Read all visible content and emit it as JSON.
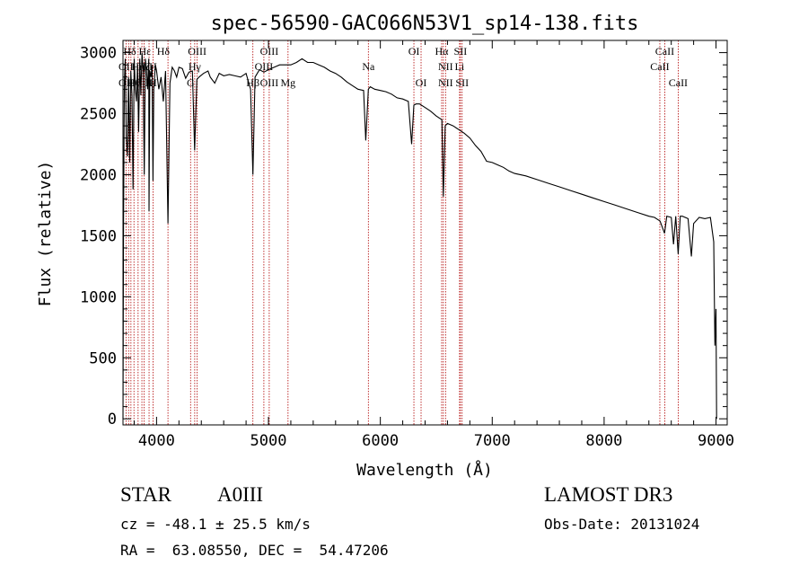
{
  "chart_data": {
    "type": "line",
    "title": "spec-56590-GAC066N53V1_sp14-138.fits",
    "xlabel": "Wavelength (Å)",
    "ylabel": "Flux (relative)",
    "xlim": [
      3700,
      9100
    ],
    "ylim": [
      -50,
      3100
    ],
    "xticks": [
      4000,
      5000,
      6000,
      7000,
      8000,
      9000
    ],
    "yticks": [
      0,
      500,
      1000,
      1500,
      2000,
      2500,
      3000
    ],
    "xtick_labels": [
      "4000",
      "5000",
      "6000",
      "7000",
      "8000",
      "9000"
    ],
    "ytick_labels": [
      "0",
      "500",
      "1000",
      "1500",
      "2000",
      "2500",
      "3000"
    ],
    "series": [
      {
        "name": "flux",
        "x": [
          3700,
          3705,
          3712,
          3720,
          3730,
          3740,
          3750,
          3760,
          3770,
          3780,
          3790,
          3800,
          3810,
          3820,
          3830,
          3840,
          3850,
          3860,
          3870,
          3880,
          3890,
          3900,
          3910,
          3920,
          3930,
          3933,
          3940,
          3950,
          3960,
          3968,
          3975,
          3990,
          4000,
          4020,
          4040,
          4060,
          4080,
          4102,
          4120,
          4140,
          4160,
          4180,
          4200,
          4230,
          4260,
          4290,
          4320,
          4340,
          4360,
          4380,
          4420,
          4460,
          4480,
          4520,
          4560,
          4600,
          4650,
          4700,
          4750,
          4800,
          4840,
          4861,
          4880,
          4920,
          4960,
          5000,
          5050,
          5100,
          5150,
          5200,
          5250,
          5300,
          5350,
          5400,
          5450,
          5500,
          5550,
          5600,
          5650,
          5700,
          5750,
          5800,
          5850,
          5870,
          5893,
          5910,
          5950,
          6000,
          6050,
          6100,
          6150,
          6200,
          6250,
          6280,
          6300,
          6320,
          6350,
          6400,
          6450,
          6500,
          6550,
          6563,
          6580,
          6600,
          6650,
          6700,
          6750,
          6800,
          6850,
          6900,
          6950,
          7000,
          7050,
          7100,
          7150,
          7200,
          7300,
          7400,
          7500,
          7600,
          7700,
          7800,
          7900,
          8000,
          8100,
          8200,
          8300,
          8400,
          8450,
          8500,
          8540,
          8560,
          8600,
          8620,
          8640,
          8662,
          8680,
          8700,
          8750,
          8780,
          8800,
          8850,
          8900,
          8950,
          8980,
          8990,
          9000,
          9005
        ],
        "values": [
          0,
          1600,
          2750,
          2950,
          2300,
          2150,
          2800,
          2100,
          2850,
          2650,
          1880,
          2950,
          2700,
          2600,
          2900,
          2350,
          2950,
          2650,
          3000,
          2850,
          2000,
          2950,
          2850,
          2700,
          2950,
          1700,
          2850,
          2800,
          2900,
          1950,
          2700,
          2900,
          2850,
          2700,
          2800,
          2600,
          2850,
          1600,
          2750,
          2880,
          2850,
          2800,
          2880,
          2870,
          2790,
          2840,
          2850,
          2200,
          2780,
          2800,
          2830,
          2850,
          2800,
          2750,
          2830,
          2810,
          2820,
          2810,
          2800,
          2830,
          2700,
          2000,
          2800,
          2860,
          2840,
          2860,
          2880,
          2900,
          2900,
          2900,
          2920,
          2950,
          2920,
          2920,
          2900,
          2880,
          2850,
          2830,
          2800,
          2760,
          2730,
          2700,
          2690,
          2280,
          2700,
          2720,
          2700,
          2690,
          2680,
          2660,
          2630,
          2620,
          2600,
          2250,
          2570,
          2580,
          2580,
          2550,
          2520,
          2480,
          2450,
          1820,
          2400,
          2420,
          2400,
          2370,
          2340,
          2300,
          2240,
          2190,
          2110,
          2100,
          2080,
          2060,
          2030,
          2010,
          1990,
          1960,
          1930,
          1900,
          1870,
          1840,
          1810,
          1780,
          1750,
          1720,
          1690,
          1660,
          1650,
          1620,
          1520,
          1660,
          1650,
          1430,
          1660,
          1350,
          1660,
          1660,
          1640,
          1330,
          1600,
          1650,
          1640,
          1650,
          1450,
          600,
          900,
          0
        ]
      }
    ],
    "lines_x": [
      3727,
      3750,
      3771,
      3798,
      3835,
      3869,
      3889,
      3933,
      3968,
      4102,
      4304,
      4341,
      4363,
      4861,
      4959,
      5007,
      5175,
      5893,
      6300,
      6364,
      6548,
      6563,
      6583,
      6708,
      6716,
      6731,
      8498,
      8542,
      8662
    ],
    "line_labels": [
      {
        "text": "Hδ",
        "x": 3760,
        "row": 1
      },
      {
        "text": "Hε",
        "x": 3895,
        "row": 1
      },
      {
        "text": "Hδ",
        "x": 4060,
        "row": 1
      },
      {
        "text": "OIII",
        "x": 4363,
        "row": 1
      },
      {
        "text": "OIII",
        "x": 5007,
        "row": 1
      },
      {
        "text": "OI",
        "x": 6300,
        "row": 1
      },
      {
        "text": "Hα",
        "x": 6548,
        "row": 1
      },
      {
        "text": "SII",
        "x": 6716,
        "row": 1
      },
      {
        "text": "CaII",
        "x": 8542,
        "row": 1
      },
      {
        "text": "OII",
        "x": 3727,
        "row": 2
      },
      {
        "text": "Hη",
        "x": 3835,
        "row": 2
      },
      {
        "text": "Hζ",
        "x": 3889,
        "row": 2
      },
      {
        "text": "H",
        "x": 3968,
        "row": 2
      },
      {
        "text": "Hγ",
        "x": 4341,
        "row": 2
      },
      {
        "text": "OIII",
        "x": 4959,
        "row": 2
      },
      {
        "text": "Na",
        "x": 5893,
        "row": 2
      },
      {
        "text": "NII",
        "x": 6583,
        "row": 2
      },
      {
        "text": "Li",
        "x": 6708,
        "row": 2
      },
      {
        "text": "CaII",
        "x": 8498,
        "row": 2
      },
      {
        "text": "OII",
        "x": 3727,
        "row": 3
      },
      {
        "text": "Hθ",
        "x": 3798,
        "row": 3
      },
      {
        "text": "K",
        "x": 3933,
        "row": 3
      },
      {
        "text": "H",
        "x": 3968,
        "row": 3
      },
      {
        "text": "G",
        "x": 4304,
        "row": 3
      },
      {
        "text": "Hβ",
        "x": 4861,
        "row": 3
      },
      {
        "text": "OIII",
        "x": 5007,
        "row": 3
      },
      {
        "text": "Mg",
        "x": 5175,
        "row": 3
      },
      {
        "text": "OI",
        "x": 6364,
        "row": 3
      },
      {
        "text": "NII",
        "x": 6583,
        "row": 3
      },
      {
        "text": "SII",
        "x": 6731,
        "row": 3
      },
      {
        "text": "CaII",
        "x": 8662,
        "row": 3
      }
    ],
    "colors": {
      "spectrum": "#000000",
      "lines": "#b00000",
      "axes": "#000000"
    }
  },
  "info": {
    "object_class": "STAR",
    "subclass": "A0III",
    "survey": "LAMOST DR3",
    "cz": "cz = -48.1 ± 25.5 km/s",
    "obs_date": "Obs-Date: 20131024",
    "coords": "RA =  63.08550, DEC =  54.47206"
  }
}
